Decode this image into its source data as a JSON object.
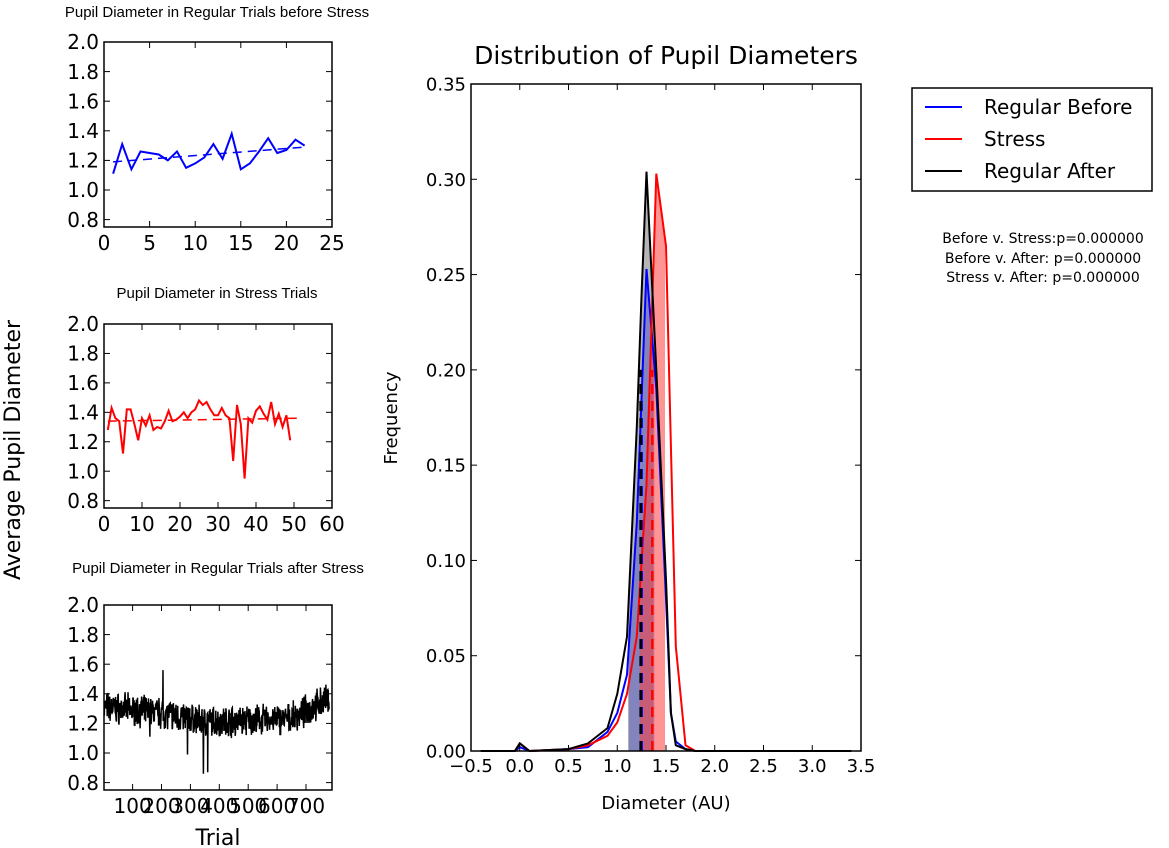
{
  "figure": {
    "ylabel_shared": "Average Pupil Diameter",
    "stats": [
      "Before v. Stress:p=0.000000",
      "Before v. After: p=0.000000",
      "Stress v. After: p=0.000000"
    ]
  },
  "legend": {
    "entries": [
      {
        "label": "Regular Before",
        "color": "#0000ff"
      },
      {
        "label": "Stress",
        "color": "#ff0000"
      },
      {
        "label": "Regular After",
        "color": "#000000"
      }
    ]
  },
  "chart_data": [
    {
      "type": "line",
      "title": "Pupil Diameter in Regular Trials before Stress",
      "xlabel": "",
      "ylabel": "",
      "xlim": [
        0,
        25
      ],
      "ylim": [
        0.75,
        2.0
      ],
      "xticks": [
        "0",
        "5",
        "10",
        "15",
        "20",
        "25"
      ],
      "yticks": [
        "0.8",
        "1.0",
        "1.2",
        "1.4",
        "1.6",
        "1.8",
        "2.0"
      ],
      "color": "#0000ff",
      "series": [
        {
          "values": [
            1.11,
            1.31,
            1.14,
            1.26,
            1.25,
            1.24,
            1.2,
            1.26,
            1.15,
            1.18,
            1.22,
            1.31,
            1.21,
            1.38,
            1.14,
            1.18,
            1.26,
            1.35,
            1.25,
            1.27,
            1.34,
            1.3
          ]
        }
      ],
      "trend": [
        [
          1,
          1.19
        ],
        [
          22,
          1.29
        ]
      ]
    },
    {
      "type": "line",
      "title": "Pupil Diameter in Stress Trials",
      "xlabel": "",
      "ylabel": "",
      "xlim": [
        0,
        60
      ],
      "ylim": [
        0.75,
        2.0
      ],
      "xticks": [
        "0",
        "10",
        "20",
        "30",
        "40",
        "50",
        "60"
      ],
      "yticks": [
        "0.8",
        "1.0",
        "1.2",
        "1.4",
        "1.6",
        "1.8",
        "2.0"
      ],
      "color": "#ff0000",
      "series": [
        {
          "values": [
            1.28,
            1.43,
            1.36,
            1.34,
            1.12,
            1.42,
            1.42,
            1.32,
            1.21,
            1.36,
            1.31,
            1.38,
            1.28,
            1.3,
            1.29,
            1.34,
            1.41,
            1.34,
            1.35,
            1.37,
            1.4,
            1.36,
            1.4,
            1.42,
            1.48,
            1.45,
            1.47,
            1.42,
            1.38,
            1.38,
            1.43,
            1.38,
            1.36,
            1.07,
            1.45,
            1.32,
            0.95,
            1.36,
            1.33,
            1.41,
            1.44,
            1.39,
            1.35,
            1.47,
            1.32,
            1.39,
            1.3,
            1.38,
            1.21
          ]
        }
      ],
      "trend": [
        [
          1,
          1.34
        ],
        [
          51,
          1.36
        ]
      ]
    },
    {
      "type": "line",
      "title": "Pupil Diameter in Regular Trials after Stress",
      "xlabel": "Trial",
      "ylabel": "",
      "xlim": [
        1,
        790
      ],
      "ylim": [
        0.75,
        2.0
      ],
      "xticks": [
        "100",
        "200",
        "300",
        "400",
        "500",
        "600",
        "700"
      ],
      "xtick_values": [
        100,
        200,
        300,
        400,
        500,
        600,
        700
      ],
      "yticks": [
        "0.8",
        "1.0",
        "1.2",
        "1.4",
        "1.6",
        "1.8",
        "2.0"
      ],
      "color": "#000000",
      "series": [
        {
          "name": "",
          "values": []
        }
      ],
      "noise_profile": {
        "n": 780,
        "base": [
          [
            1,
            1.31
          ],
          [
            200,
            1.27
          ],
          [
            350,
            1.21
          ],
          [
            500,
            1.22
          ],
          [
            650,
            1.23
          ],
          [
            780,
            1.37
          ]
        ],
        "spikes": [
          [
            205,
            1.56
          ],
          [
            345,
            0.86
          ],
          [
            360,
            0.87
          ],
          [
            290,
            0.99
          ],
          [
            160,
            1.11
          ]
        ]
      }
    },
    {
      "type": "area",
      "title": "Distribution of Pupil Diameters",
      "xlabel": "Diameter (AU)",
      "ylabel": "Frequency",
      "xlim": [
        -0.5,
        3.5
      ],
      "ylim": [
        0,
        0.35
      ],
      "xticks": [
        "−0.5",
        "0.0",
        "0.5",
        "1.0",
        "1.5",
        "2.0",
        "2.5",
        "3.0",
        "3.5"
      ],
      "yticks": [
        "0.00",
        "0.05",
        "0.10",
        "0.15",
        "0.20",
        "0.25",
        "0.30",
        "0.35"
      ],
      "series": [
        {
          "name": "Regular Before",
          "color": "#0000ff",
          "x": [
            -0.4,
            -0.05,
            0.0,
            0.1,
            0.5,
            0.7,
            0.9,
            1.0,
            1.1,
            1.2,
            1.3,
            1.4,
            1.5,
            1.55,
            1.6,
            1.7,
            1.8,
            3.4
          ],
          "y": [
            0,
            0,
            0.002,
            0,
            0.001,
            0.002,
            0.01,
            0.02,
            0.04,
            0.12,
            0.253,
            0.19,
            0.08,
            0.02,
            0.005,
            0.001,
            0,
            0
          ],
          "mean": 1.25
        },
        {
          "name": "Stress",
          "color": "#ff0000",
          "x": [
            -0.4,
            -0.05,
            0.0,
            0.1,
            0.5,
            0.7,
            0.9,
            1.0,
            1.1,
            1.2,
            1.3,
            1.4,
            1.5,
            1.6,
            1.7,
            1.8,
            3.4
          ],
          "y": [
            0,
            0,
            0.004,
            0,
            0.001,
            0.003,
            0.008,
            0.015,
            0.03,
            0.06,
            0.14,
            0.303,
            0.265,
            0.055,
            0.003,
            0,
            0
          ],
          "mean": 1.36
        },
        {
          "name": "Regular After",
          "color": "#000000",
          "x": [
            -0.4,
            -0.05,
            0.0,
            0.1,
            0.5,
            0.7,
            0.9,
            1.0,
            1.1,
            1.2,
            1.25,
            1.3,
            1.4,
            1.5,
            1.55,
            1.6,
            1.7,
            1.8,
            3.4
          ],
          "y": [
            0,
            0,
            0.004,
            0,
            0.001,
            0.004,
            0.012,
            0.03,
            0.06,
            0.17,
            0.24,
            0.304,
            0.2,
            0.09,
            0.02,
            0.003,
            0.001,
            0,
            0
          ],
          "mean": 1.24
        }
      ]
    }
  ]
}
